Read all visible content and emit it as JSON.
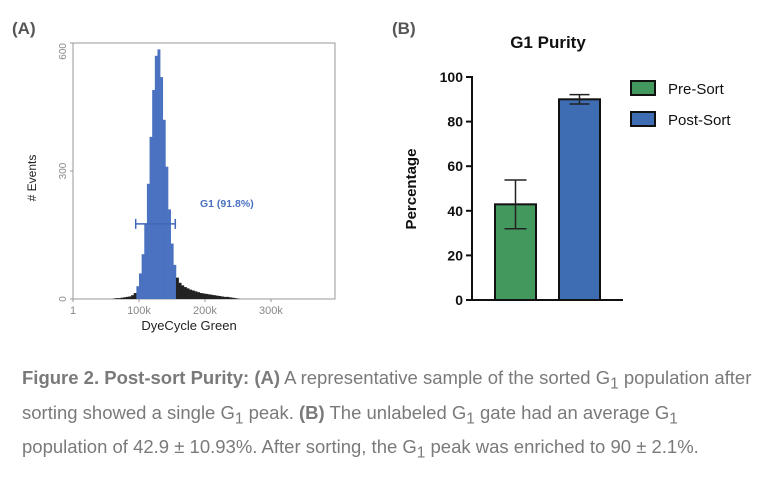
{
  "panel_a_label": "(A)",
  "panel_b_label": "(B)",
  "chart_data": [
    {
      "type": "bar",
      "subtype": "histogram",
      "title": "",
      "xlabel": "DyeCycle Green",
      "ylabel": "# Events",
      "xlim": [
        0,
        397000
      ],
      "ylim": [
        0,
        600
      ],
      "xticks": [
        {
          "value": 0,
          "label": "1"
        },
        {
          "value": 100000,
          "label": "100k"
        },
        {
          "value": 200000,
          "label": "200k"
        },
        {
          "value": 300000,
          "label": "300k"
        }
      ],
      "yticks": [
        {
          "value": 0,
          "label": "0"
        },
        {
          "value": 300,
          "label": "300"
        },
        {
          "value": 600,
          "label": "600"
        }
      ],
      "bin_width": 4000,
      "bin_starts": [
        60000,
        64000,
        68000,
        72000,
        76000,
        80000,
        84000,
        88000,
        92000,
        96000,
        100000,
        104000,
        108000,
        112000,
        116000,
        120000,
        124000,
        128000,
        132000,
        136000,
        140000,
        144000,
        148000,
        152000,
        156000,
        160000,
        164000,
        168000,
        172000,
        176000,
        180000,
        184000,
        188000,
        192000,
        196000,
        200000,
        204000,
        208000,
        212000,
        216000,
        220000,
        224000,
        228000,
        232000,
        236000,
        240000,
        244000,
        248000
      ],
      "counts": [
        1,
        2,
        2,
        3,
        4,
        5,
        6,
        9,
        14,
        30,
        60,
        105,
        175,
        270,
        380,
        490,
        570,
        585,
        520,
        420,
        310,
        210,
        130,
        80,
        50,
        38,
        32,
        28,
        25,
        22,
        20,
        18,
        16,
        14,
        13,
        12,
        11,
        10,
        9,
        8,
        7,
        6,
        5,
        5,
        4,
        3,
        2,
        1
      ],
      "gate": {
        "name": "G1",
        "label": "G1 (91.8%)",
        "range": [
          95000,
          155000
        ],
        "percent": 91.8
      },
      "colors": {
        "gated": "#4a72c0",
        "ungated": "#222222",
        "gate": "#3f68b8"
      }
    },
    {
      "type": "bar",
      "title": "G1 Purity",
      "xlabel": "",
      "ylabel": "Percentage",
      "ylim": [
        0,
        100
      ],
      "yticks": [
        0,
        20,
        40,
        60,
        80,
        100
      ],
      "legend_position": "right",
      "categories": [
        "Pre-Sort",
        "Post-Sort"
      ],
      "series": [
        {
          "name": "Pre-Sort",
          "value": 42.9,
          "error": 10.93,
          "color": "#43985d"
        },
        {
          "name": "Post-Sort",
          "value": 90,
          "error": 2.1,
          "color": "#3e6db3"
        }
      ]
    }
  ],
  "caption": {
    "fig_label": "Figure 2. Post-sort Purity:",
    "a_label": "(A)",
    "a_text_1": " A representative sample of the sorted G",
    "a_sub_1": "1",
    "a_text_2": " population after sorting showed a single G",
    "a_sub_2": "1",
    "a_text_3": " peak. ",
    "b_label": "(B)",
    "b_text_1": " The unlabeled G",
    "b_sub_1": "1",
    "b_text_2": " gate had an average G",
    "b_sub_2": "1",
    "b_text_3": " population of 42.9 ± 10.93%. After sorting, the G",
    "b_sub_3": "1",
    "b_text_4": " peak was enriched to 90 ± 2.1%."
  }
}
